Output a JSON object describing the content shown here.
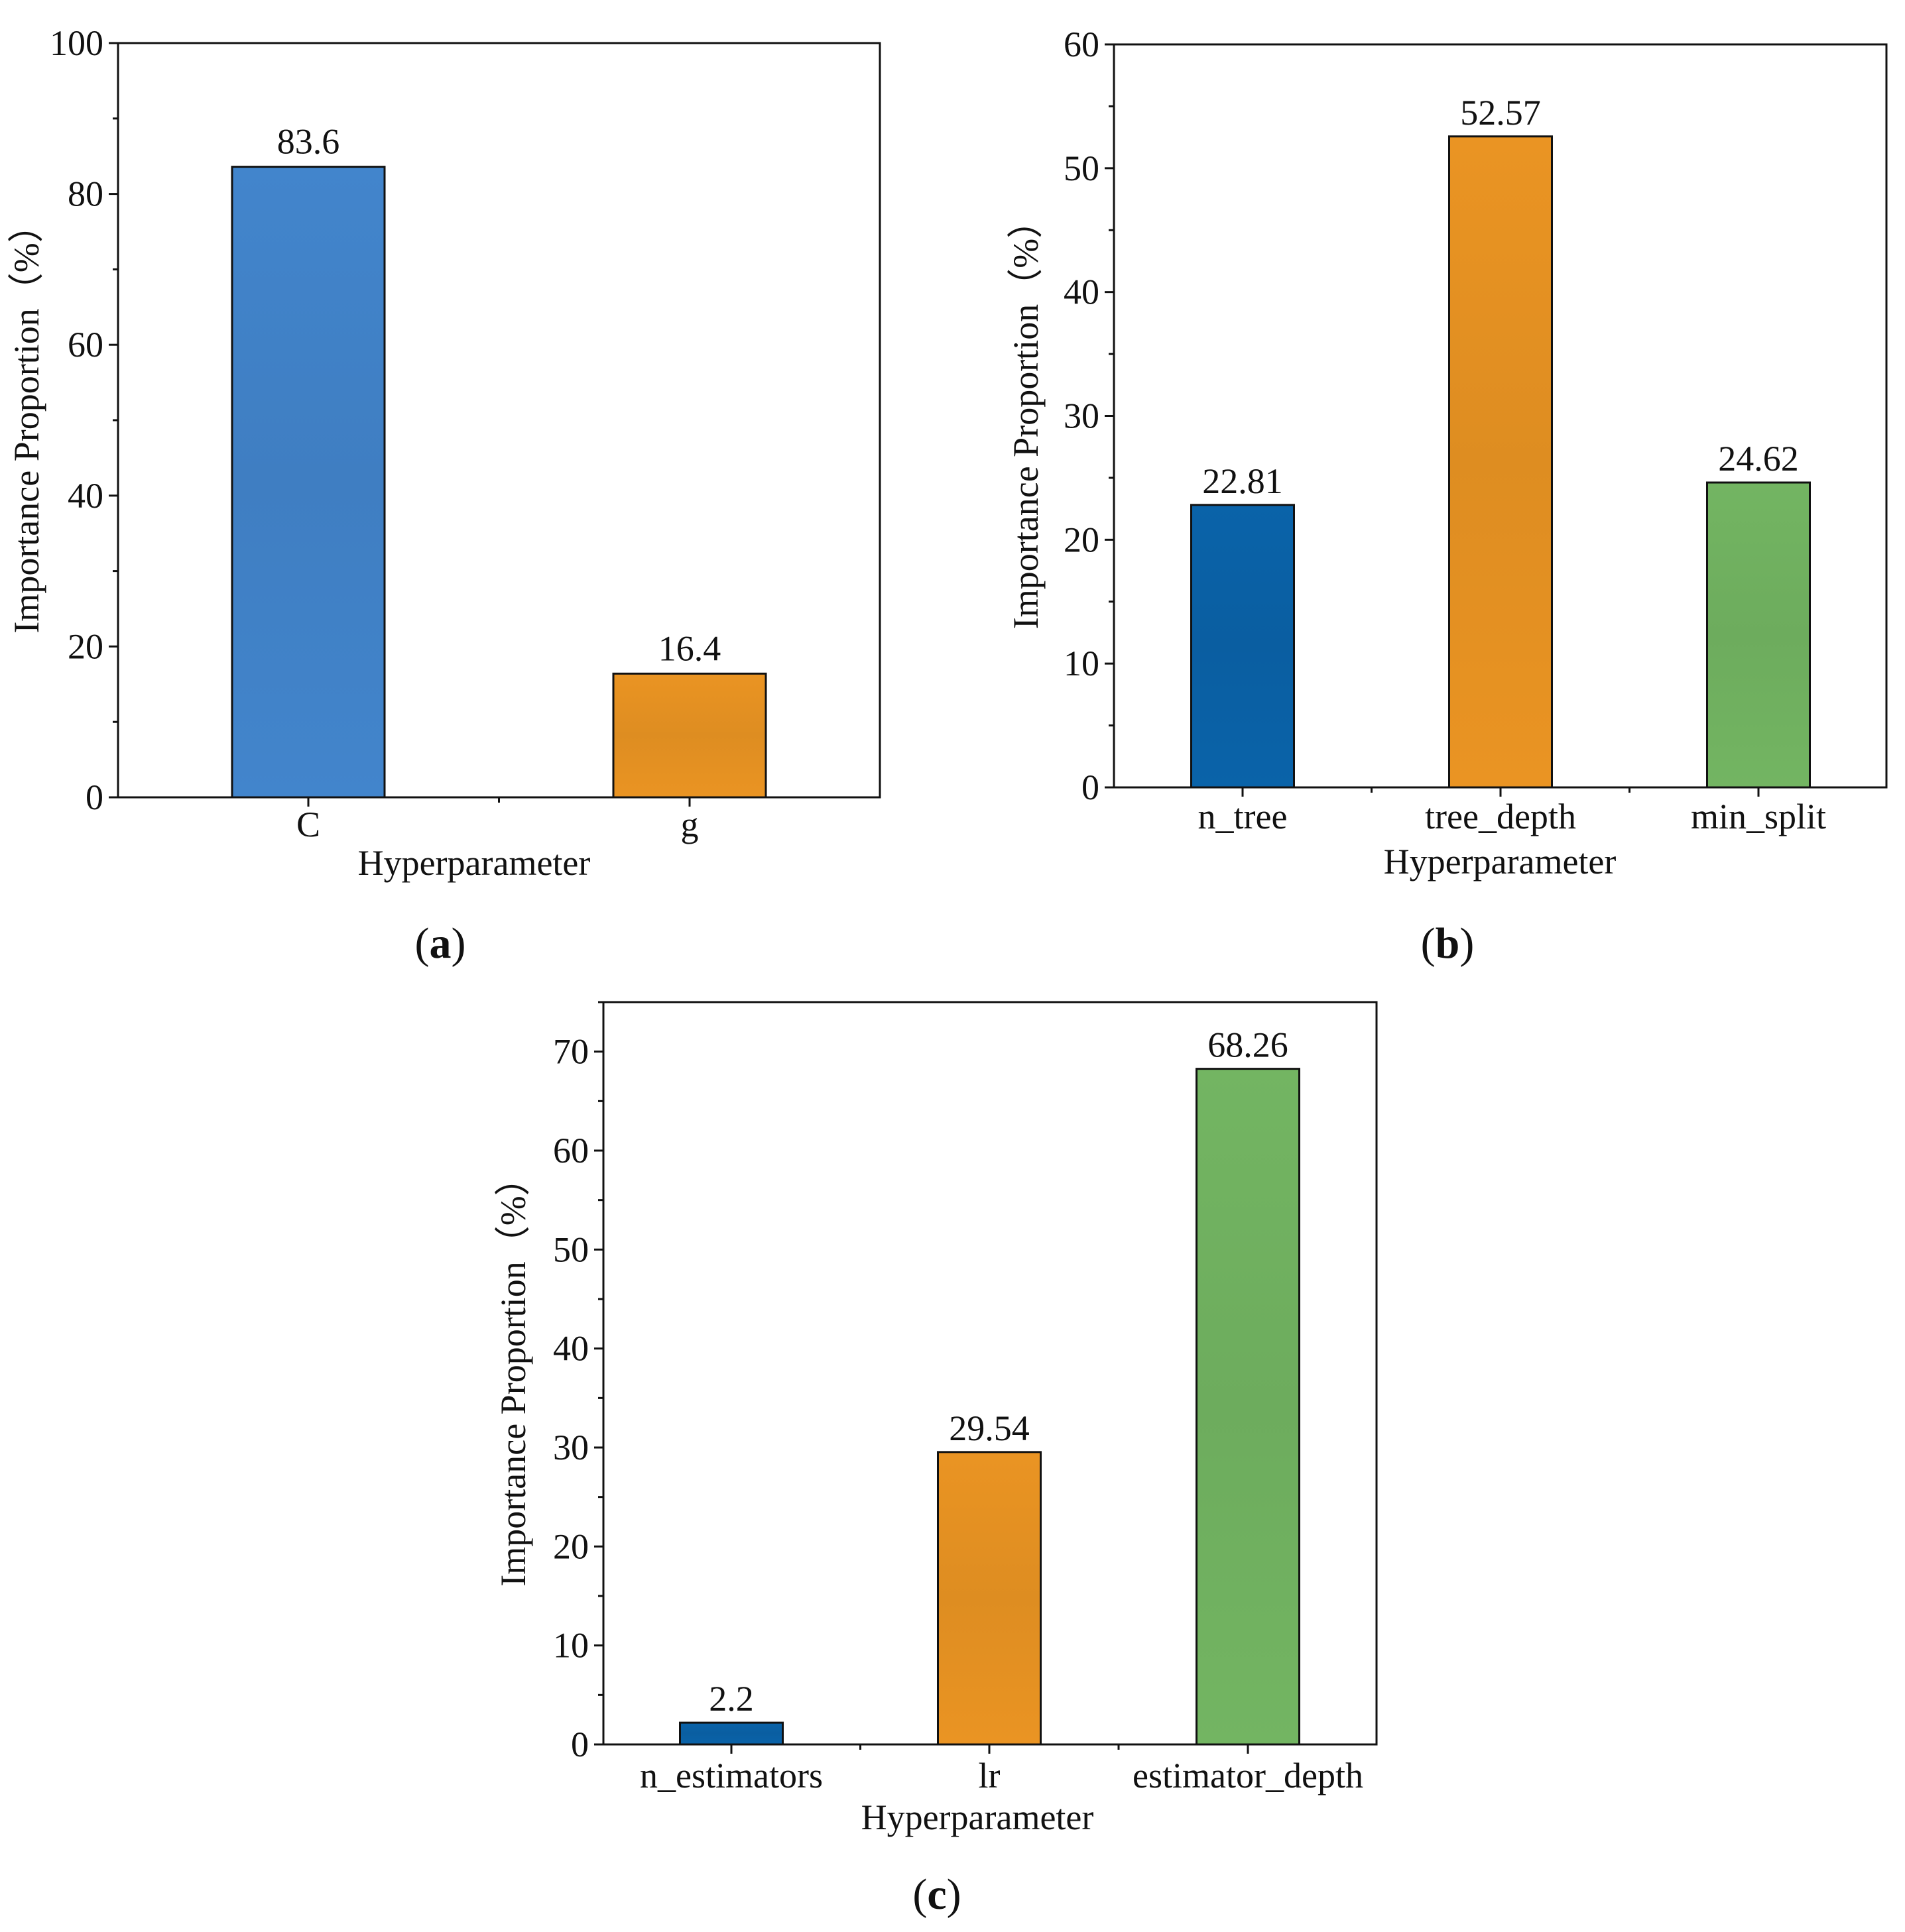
{
  "chart_data": [
    {
      "type": "bar",
      "panel_label": "a",
      "categories": [
        "C",
        "g"
      ],
      "values": [
        83.6,
        16.4
      ],
      "value_labels": [
        "83.6",
        "16.4"
      ],
      "colors": [
        "#4285CC",
        "#EA9423"
      ],
      "xlabel": "Hyperparameter",
      "ylabel": "Importance Proportion（%）",
      "ylim": [
        0,
        100
      ],
      "yticks": [
        0,
        20,
        40,
        60,
        80,
        100
      ],
      "minor_step": 10,
      "grid": false
    },
    {
      "type": "bar",
      "panel_label": "b",
      "categories": [
        "n_tree",
        "tree_depth",
        "min_split"
      ],
      "values": [
        22.81,
        52.57,
        24.62
      ],
      "value_labels": [
        "22.81",
        "52.57",
        "24.62"
      ],
      "colors": [
        "#0A63A9",
        "#EA9423",
        "#73B562"
      ],
      "xlabel": "Hyperparameter",
      "ylabel": "Importance Proportion（%）",
      "ylim": [
        0,
        60
      ],
      "yticks": [
        0,
        10,
        20,
        30,
        40,
        50,
        60
      ],
      "minor_step": 5,
      "grid": false
    },
    {
      "type": "bar",
      "panel_label": "c",
      "categories": [
        "n_estimators",
        "lr",
        "estimator_depth"
      ],
      "values": [
        2.2,
        29.54,
        68.26
      ],
      "value_labels": [
        "2.2",
        "29.54",
        "68.26"
      ],
      "colors": [
        "#0A63A9",
        "#EA9423",
        "#73B562"
      ],
      "xlabel": "Hyperparameter",
      "ylabel": "Importance Proportion（%）",
      "ylim": [
        0,
        75
      ],
      "yticks": [
        0,
        10,
        20,
        30,
        40,
        50,
        60,
        70
      ],
      "minor_step": 5,
      "grid": false
    }
  ]
}
